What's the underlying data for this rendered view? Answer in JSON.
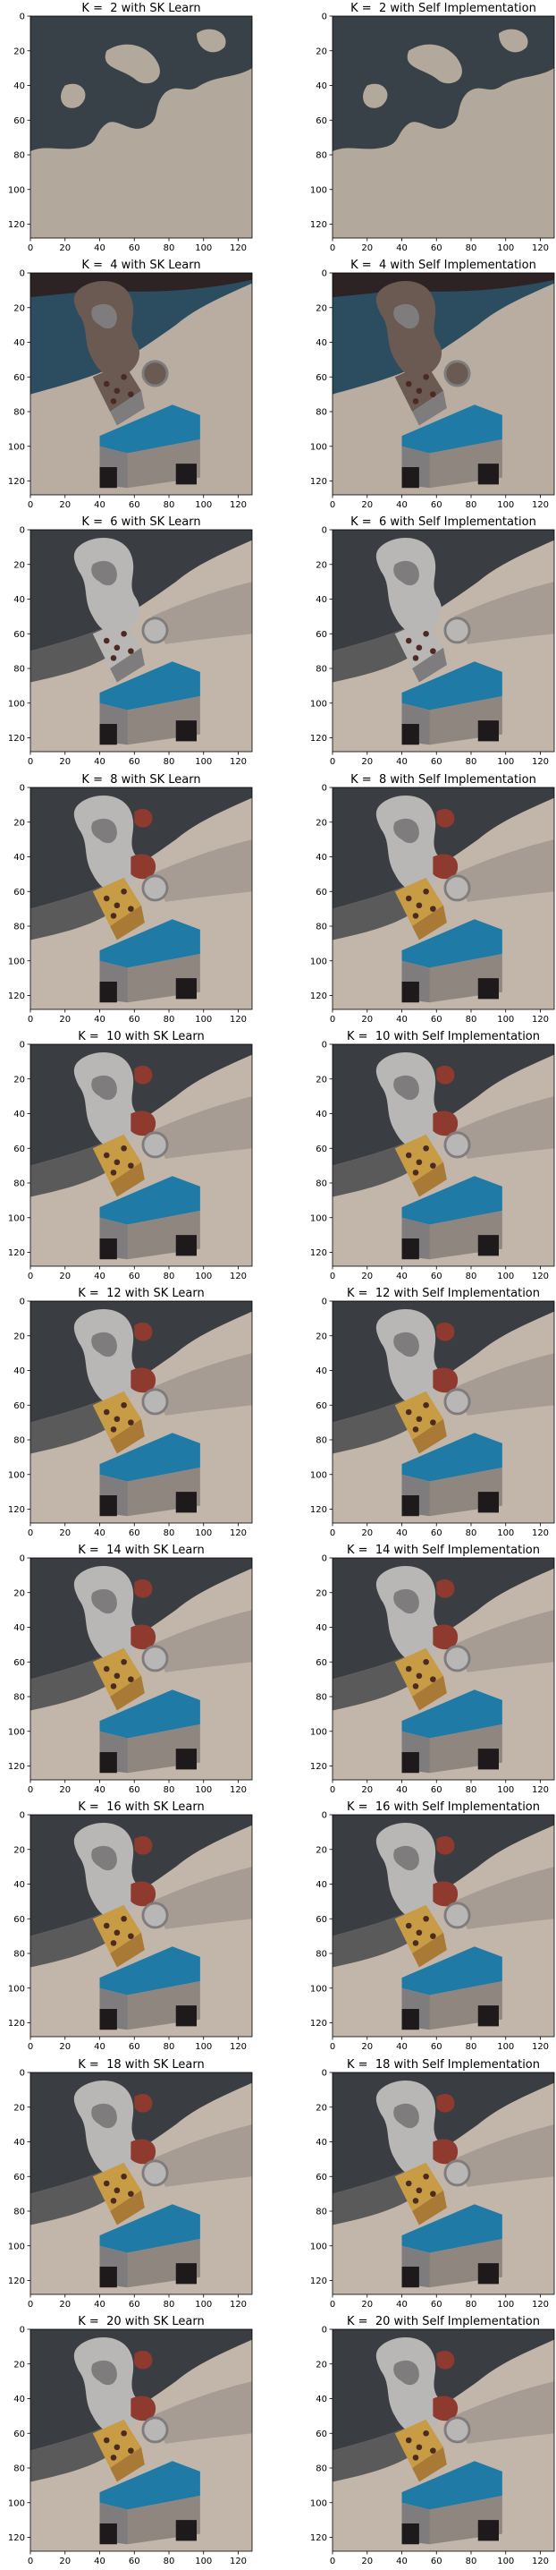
{
  "figure": {
    "panels": [
      {
        "title": "K =  2 with SK Learn",
        "k": 2,
        "method": "SK Learn"
      },
      {
        "title": "K =  2 with Self Implementation",
        "k": 2,
        "method": "Self Implementation"
      },
      {
        "title": "K =  4 with SK Learn",
        "k": 4,
        "method": "SK Learn"
      },
      {
        "title": "K =  4 with Self Implementation",
        "k": 4,
        "method": "Self Implementation"
      },
      {
        "title": "K =  6 with SK Learn",
        "k": 6,
        "method": "SK Learn"
      },
      {
        "title": "K =  6 with Self Implementation",
        "k": 6,
        "method": "Self Implementation"
      },
      {
        "title": "K =  8 with SK Learn",
        "k": 8,
        "method": "SK Learn"
      },
      {
        "title": "K =  8 with Self Implementation",
        "k": 8,
        "method": "Self Implementation"
      },
      {
        "title": "K =  10 with SK Learn",
        "k": 10,
        "method": "SK Learn"
      },
      {
        "title": "K =  10 with Self Implementation",
        "k": 10,
        "method": "Self Implementation"
      },
      {
        "title": "K =  12 with SK Learn",
        "k": 12,
        "method": "SK Learn"
      },
      {
        "title": "K =  12 with Self Implementation",
        "k": 12,
        "method": "Self Implementation"
      },
      {
        "title": "K =  14 with SK Learn",
        "k": 14,
        "method": "SK Learn"
      },
      {
        "title": "K =  14 with Self Implementation",
        "k": 14,
        "method": "Self Implementation"
      },
      {
        "title": "K =  16 with SK Learn",
        "k": 16,
        "method": "SK Learn"
      },
      {
        "title": "K =  16 with Self Implementation",
        "k": 16,
        "method": "Self Implementation"
      },
      {
        "title": "K =  18 with SK Learn",
        "k": 18,
        "method": "SK Learn"
      },
      {
        "title": "K =  18 with Self Implementation",
        "k": 18,
        "method": "Self Implementation"
      },
      {
        "title": "K =  20 with SK Learn",
        "k": 20,
        "method": "SK Learn"
      },
      {
        "title": "K =  20 with Self Implementation",
        "k": 20,
        "method": "Self Implementation"
      }
    ],
    "x_ticks": [
      "0",
      "20",
      "40",
      "60",
      "80",
      "100",
      "120"
    ],
    "y_ticks": [
      "0",
      "20",
      "40",
      "60",
      "80",
      "100",
      "120"
    ],
    "image_range": [
      0,
      128
    ],
    "palette": {
      "floor_light": "#c2b6ab",
      "floor_dark": "#8f8680",
      "background_dark": "#3a3d42",
      "background_mid": "#5b5a5a",
      "robot_white": "#b9b7b5",
      "robot_gray": "#7e7c7c",
      "robot_red": "#8f3a2e",
      "dice_orange": "#c89b45",
      "dice_dots": "#4a2a22",
      "box_blue": "#1f7aa6",
      "box_legs": "#1e1a1c",
      "k2_dark": "#384048",
      "k2_light": "#b3a89c",
      "k4_teal": "#2c4d5f",
      "k4_brown": "#6a5a52",
      "k4_dark": "#2e2324",
      "k4_light": "#b9ada2"
    }
  }
}
